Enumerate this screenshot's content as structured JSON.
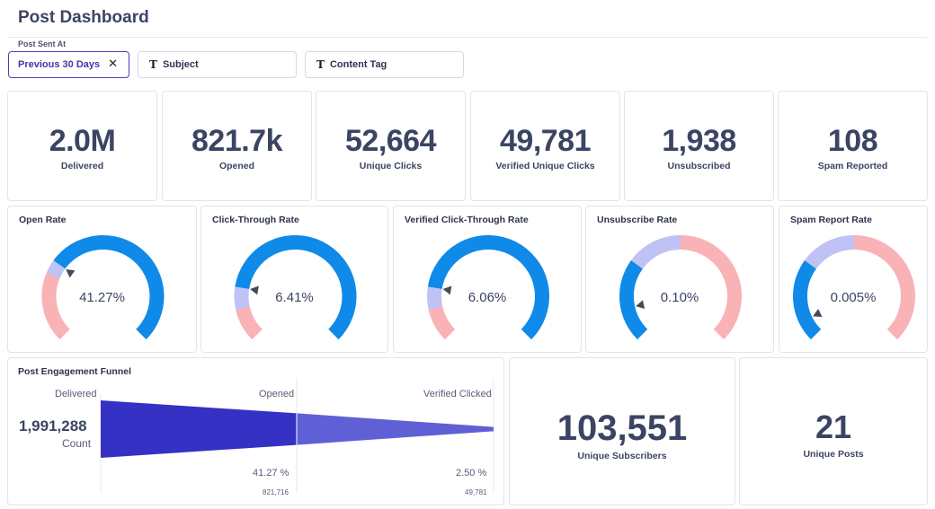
{
  "header": {
    "title": "Post Dashboard"
  },
  "filters": {
    "label": "Post Sent At",
    "date_range": "Previous 30 Days",
    "clear_symbol": "✕",
    "subject": "Subject",
    "content_tag": "Content Tag",
    "text_icon": "T"
  },
  "stats": [
    {
      "value": "2.0M",
      "label": "Delivered"
    },
    {
      "value": "821.7k",
      "label": "Opened"
    },
    {
      "value": "52,664",
      "label": "Unique Clicks"
    },
    {
      "value": "49,781",
      "label": "Verified Unique Clicks"
    },
    {
      "value": "1,938",
      "label": "Unsubscribed"
    },
    {
      "value": "108",
      "label": "Spam Reported"
    }
  ],
  "colors": {
    "blue": "#0f8ae8",
    "lavender": "#bfc2f4",
    "pink": "#f9b2b6",
    "funnel_dark": "#3531c4",
    "funnel_light": "#6060d6"
  },
  "gauges": [
    {
      "title": "Open Rate",
      "value_text": "41.27%",
      "bands": [
        0.25,
        0.3
      ],
      "needle": 0.3
    },
    {
      "title": "Click-Through Rate",
      "value_text": "6.41%",
      "bands": [
        0.12,
        0.2
      ],
      "needle": 0.2
    },
    {
      "title": "Verified Click-Through Rate",
      "value_text": "6.06%",
      "bands": [
        0.12,
        0.2
      ],
      "needle": 0.2
    },
    {
      "title": "Unsubscribe Rate",
      "value_text": "0.10%",
      "bands": [
        0.3,
        0.5
      ],
      "needle": 0.12,
      "direction": "lower_better"
    },
    {
      "title": "Spam Report Rate",
      "value_text": "0.005%",
      "bands": [
        0.3,
        0.5
      ],
      "needle": 0.07,
      "direction": "lower_better"
    }
  ],
  "funnel": {
    "title": "Post Engagement Funnel",
    "total_value": "1,991,288",
    "total_label": "Count",
    "stages": [
      {
        "label": "Delivered",
        "value": 1991288
      },
      {
        "label": "Opened",
        "percent": "41.27 %",
        "count": "821,716",
        "value": 821716
      },
      {
        "label": "Verified Clicked",
        "percent": "2.50 %",
        "count": "49,781",
        "value": 49781
      }
    ]
  },
  "summary": [
    {
      "value": "103,551",
      "label": "Unique Subscribers"
    },
    {
      "value": "21",
      "label": "Unique Posts"
    }
  ]
}
